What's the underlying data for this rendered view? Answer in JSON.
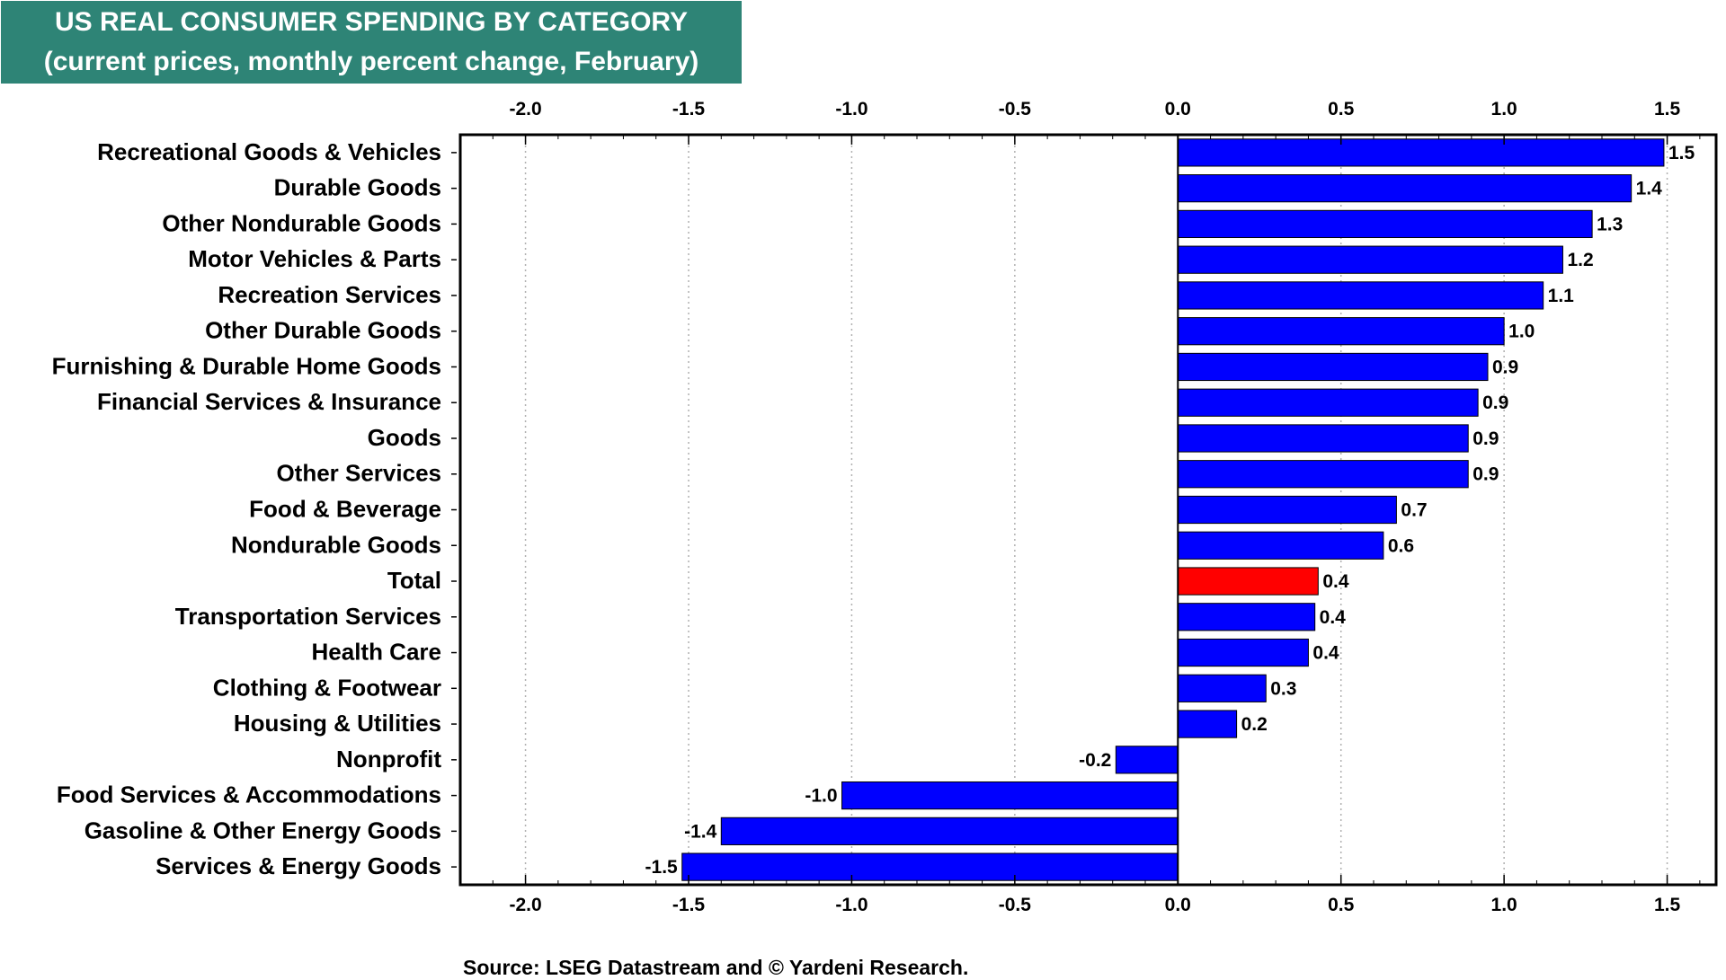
{
  "title": {
    "line1": "US REAL CONSUMER SPENDING BY CATEGORY",
    "line2": "(current prices, monthly percent change, February)"
  },
  "source": "Source: LSEG Datastream and © Yardeni Research.",
  "colors": {
    "bar": "#0000ff",
    "highlight": "#ff0000",
    "title_bg": "#2e8476"
  },
  "chart_data": {
    "type": "bar",
    "orientation": "horizontal",
    "xlim": [
      -2.2,
      1.65
    ],
    "ticks": [
      -2.0,
      -1.5,
      -1.0,
      -0.5,
      0.0,
      0.5,
      1.0,
      1.5
    ],
    "tick_labels": [
      "-2.0",
      "-1.5",
      "-1.0",
      "-0.5",
      "0.0",
      "0.5",
      "1.0",
      "1.5"
    ],
    "grid": true,
    "highlight_category": "Total",
    "categories": [
      "Recreational Goods & Vehicles",
      "Durable Goods",
      "Other Nondurable Goods",
      "Motor Vehicles & Parts",
      "Recreation Services",
      "Other Durable Goods",
      "Furnishing & Durable Home Goods",
      "Financial Services & Insurance",
      "Goods",
      "Other Services",
      "Food & Beverage",
      "Nondurable Goods",
      "Total",
      "Transportation Services",
      "Health Care",
      "Clothing & Footwear",
      "Housing & Utilities",
      "Nonprofit",
      "Food Services & Accommodations",
      "Gasoline & Other Energy Goods",
      "Services & Energy Goods"
    ],
    "values": [
      1.49,
      1.39,
      1.27,
      1.18,
      1.12,
      1.0,
      0.95,
      0.92,
      0.89,
      0.89,
      0.67,
      0.63,
      0.43,
      0.42,
      0.4,
      0.27,
      0.18,
      -0.19,
      -1.03,
      -1.4,
      -1.52
    ],
    "value_labels": [
      "1.5",
      "1.4",
      "1.3",
      "1.2",
      "1.1",
      "1.0",
      "0.9",
      "0.9",
      "0.9",
      "0.9",
      "0.7",
      "0.6",
      "0.4",
      "0.4",
      "0.4",
      "0.3",
      "0.2",
      "-0.2",
      "-1.0",
      "-1.4",
      "-1.5"
    ]
  }
}
